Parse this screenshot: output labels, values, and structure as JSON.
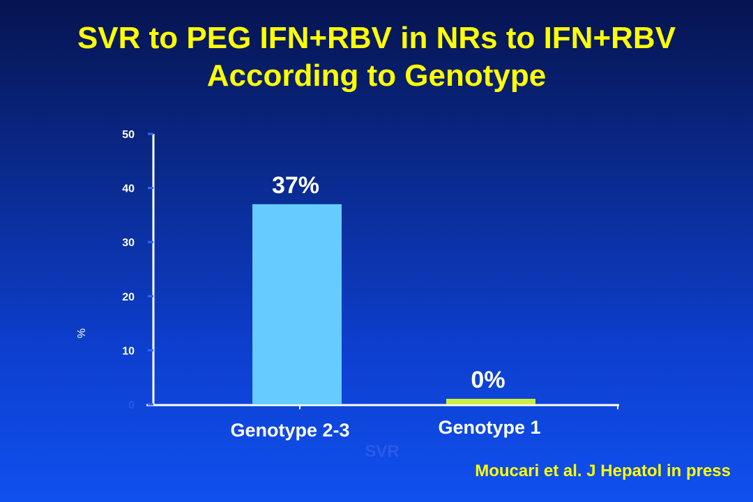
{
  "title": {
    "line1": "SVR to PEG IFN+RBV in NRs to IFN+RBV",
    "line2": "According to Genotype"
  },
  "citation": "Moucari et al. J Hepatol in press",
  "colors": {
    "title": "#ffff00",
    "tick_labels": "#ffffff",
    "axis": "#ffffff",
    "tick_marks": "#3366ff",
    "bar_genotype_2_3": "#66ccff",
    "bar_genotype_1": "#ccee44",
    "faint_label": "#2a5ae8"
  },
  "chart_data": {
    "type": "bar",
    "categories": [
      "Genotype 2-3",
      "Genotype 1"
    ],
    "values": [
      37,
      0
    ],
    "data_labels": [
      "37%",
      "0%"
    ],
    "yticks": [
      0,
      10,
      20,
      30,
      40,
      50
    ],
    "ylim": [
      0,
      50
    ],
    "ylabel": "%",
    "xlabel": "SVR",
    "grid": false,
    "legend": "none"
  }
}
